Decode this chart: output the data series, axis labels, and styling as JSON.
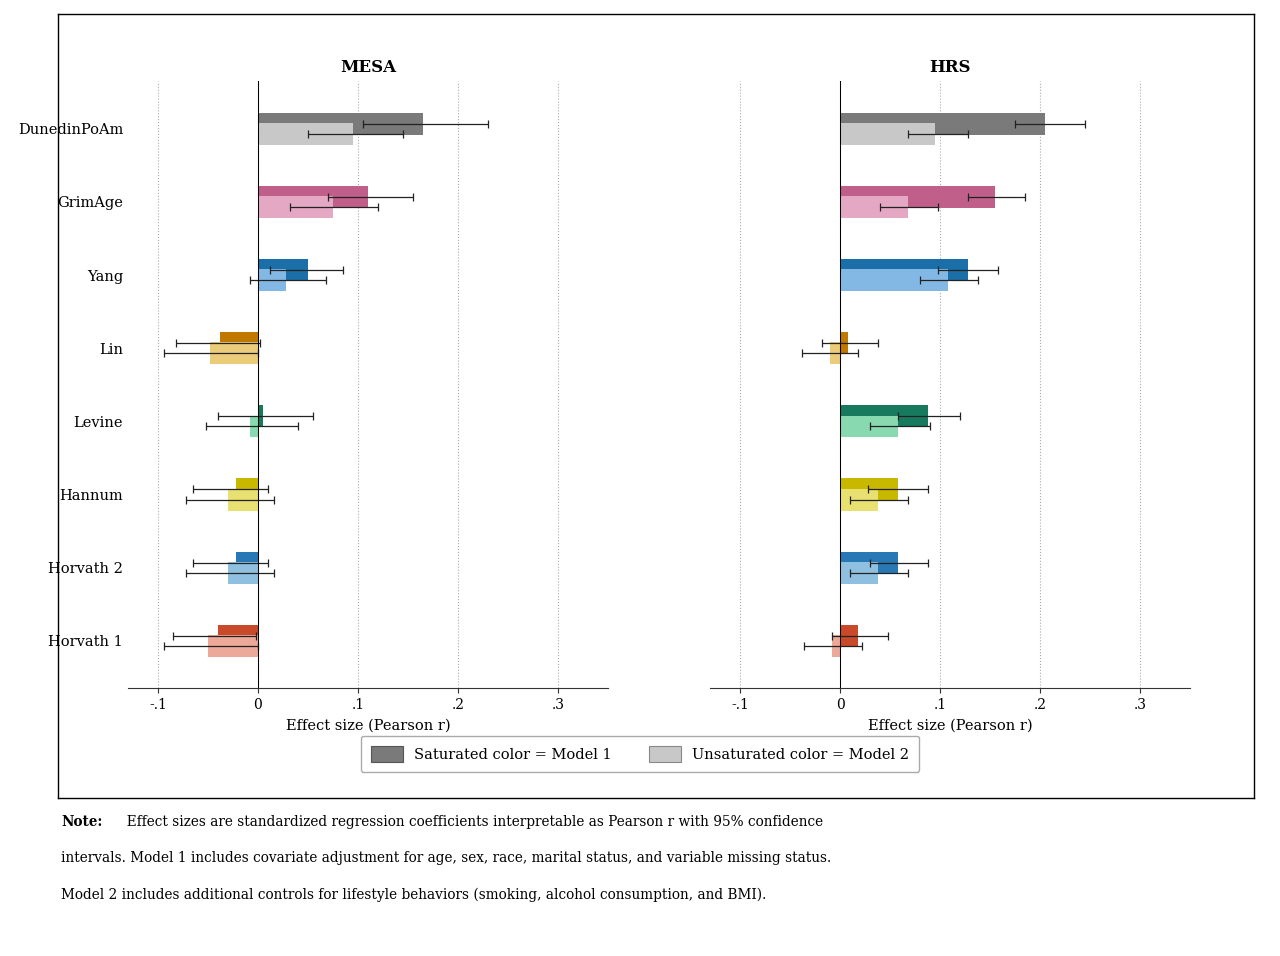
{
  "clocks": [
    "Horvath 1",
    "Horvath 2",
    "Hannum",
    "Levine",
    "Lin",
    "Yang",
    "GrimAge",
    "DunedinPoAm"
  ],
  "mesa_m1_val": [
    -0.04,
    -0.022,
    -0.022,
    0.005,
    -0.038,
    0.05,
    0.11,
    0.165
  ],
  "mesa_m1_lo": [
    -0.085,
    -0.065,
    -0.065,
    -0.04,
    -0.082,
    0.012,
    0.07,
    0.105
  ],
  "mesa_m1_hi": [
    -0.002,
    0.01,
    0.01,
    0.055,
    0.002,
    0.085,
    0.155,
    0.23
  ],
  "mesa_m2_val": [
    -0.05,
    -0.03,
    -0.03,
    -0.008,
    -0.048,
    0.028,
    0.075,
    0.095
  ],
  "mesa_m2_lo": [
    -0.094,
    -0.072,
    -0.072,
    -0.052,
    -0.094,
    -0.008,
    0.032,
    0.05
  ],
  "mesa_m2_hi": [
    0.0,
    0.016,
    0.016,
    0.04,
    0.0,
    0.068,
    0.12,
    0.145
  ],
  "hrs_m1_val": [
    0.018,
    0.058,
    0.058,
    0.088,
    0.008,
    0.128,
    0.155,
    0.205
  ],
  "hrs_m1_lo": [
    -0.008,
    0.03,
    0.028,
    0.058,
    -0.018,
    0.098,
    0.128,
    0.175
  ],
  "hrs_m1_hi": [
    0.048,
    0.088,
    0.088,
    0.12,
    0.038,
    0.158,
    0.185,
    0.245
  ],
  "hrs_m2_val": [
    -0.008,
    0.038,
    0.038,
    0.058,
    -0.01,
    0.108,
    0.068,
    0.095
  ],
  "hrs_m2_lo": [
    -0.036,
    0.01,
    0.01,
    0.03,
    -0.038,
    0.08,
    0.04,
    0.068
  ],
  "hrs_m2_hi": [
    0.022,
    0.068,
    0.068,
    0.09,
    0.018,
    0.138,
    0.098,
    0.128
  ],
  "colors_m1": [
    "#C94A2A",
    "#2878B5",
    "#C8B800",
    "#177A5E",
    "#C07800",
    "#1B6FA8",
    "#C0608A",
    "#7A7A7A"
  ],
  "colors_m2": [
    "#ECA898",
    "#90C0E0",
    "#E8E070",
    "#88D8B0",
    "#EACC7A",
    "#84B8E4",
    "#E4A8C4",
    "#C8C8C8"
  ],
  "xlim": [
    -0.13,
    0.35
  ],
  "xticks": [
    -0.1,
    0.0,
    0.1,
    0.2,
    0.3
  ],
  "xticklabels": [
    "-.1",
    "0",
    ".1",
    ".2",
    ".3"
  ],
  "xlabel": "Effect size (Pearson r)",
  "bar_height": 0.3,
  "bar_gap": 0.14,
  "legend_label1": "Saturated color = Model 1",
  "legend_label2": "Unsaturated color = Model 2",
  "note_bold": "Note:",
  "note_rest": " Effect sizes are standardized regression coefficients interpretable as Pearson r with 95% confidence intervals. Model 1 includes covariate adjustment for age, sex, race, marital status, and variable missing status. Model 2 includes additional controls for lifestyle behaviors (smoking, alcohol consumption, and BMI)."
}
